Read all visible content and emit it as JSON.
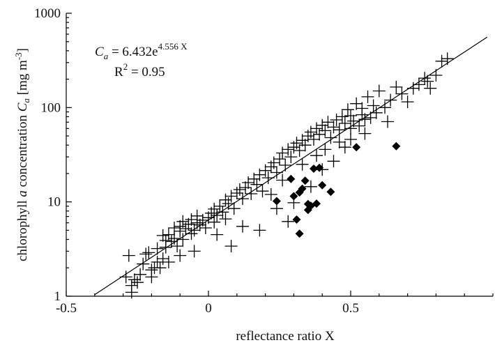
{
  "chart_data": {
    "type": "scatter",
    "xlabel": "reflectance ratio X",
    "ylabel_parts": [
      "chlorophyll ",
      "a",
      "  concentration ",
      "C",
      "a",
      " [mg m",
      "-3",
      "]"
    ],
    "xlim": [
      -0.5,
      1.0
    ],
    "ylim": [
      1,
      1000
    ],
    "yscale": "log",
    "x_ticks": [
      -0.5,
      0,
      0.5
    ],
    "x_tick_labels": [
      "-0.5",
      "0",
      "0.5"
    ],
    "y_ticks": [
      1,
      10,
      100,
      1000
    ],
    "y_tick_labels": [
      "1",
      "10",
      "100",
      "1000"
    ],
    "grid": false,
    "annotation": {
      "equation_parts": [
        "C",
        "a",
        " = 6.432e",
        "4.556 X"
      ],
      "r2_parts": [
        "R",
        "2",
        " = 0.95"
      ]
    },
    "fit_line": {
      "a": 6.432,
      "b": 4.556,
      "x_range": [
        -0.4,
        0.98
      ]
    },
    "series": [
      {
        "marker": "plus",
        "points": [
          [
            -0.28,
            2.7
          ],
          [
            -0.27,
            1.3
          ],
          [
            -0.27,
            1.1
          ],
          [
            -0.26,
            1.5
          ],
          [
            -0.29,
            1.6
          ],
          [
            -0.25,
            1.4
          ],
          [
            -0.24,
            1.7
          ],
          [
            -0.22,
            2.8
          ],
          [
            -0.23,
            2.2
          ],
          [
            -0.21,
            2.9
          ],
          [
            -0.2,
            1.6
          ],
          [
            -0.19,
            2.0
          ],
          [
            -0.18,
            2.3
          ],
          [
            -0.18,
            3.2
          ],
          [
            -0.17,
            2.0
          ],
          [
            -0.16,
            2.5
          ],
          [
            -0.16,
            4.4
          ],
          [
            -0.15,
            3.3
          ],
          [
            -0.15,
            3.9
          ],
          [
            -0.14,
            2.3
          ],
          [
            -0.14,
            4.5
          ],
          [
            -0.13,
            3.8
          ],
          [
            -0.12,
            4.1
          ],
          [
            -0.12,
            5.3
          ],
          [
            -0.11,
            3.4
          ],
          [
            -0.1,
            4.9
          ],
          [
            -0.1,
            5.5
          ],
          [
            -0.09,
            4.0
          ],
          [
            -0.09,
            6.2
          ],
          [
            -0.08,
            5.2
          ],
          [
            -0.07,
            5.8
          ],
          [
            -0.06,
            4.6
          ],
          [
            -0.06,
            6.5
          ],
          [
            -0.05,
            5.0
          ],
          [
            -0.04,
            6.0
          ],
          [
            -0.04,
            7.1
          ],
          [
            -0.03,
            5.7
          ],
          [
            -0.02,
            6.4
          ],
          [
            -0.01,
            5.3
          ],
          [
            0.0,
            6.8
          ],
          [
            0.01,
            7.6
          ],
          [
            0.02,
            6.1
          ],
          [
            0.02,
            8.4
          ],
          [
            0.03,
            7.2
          ],
          [
            0.04,
            9.0
          ],
          [
            0.05,
            7.8
          ],
          [
            0.06,
            6.6
          ],
          [
            0.06,
            10.5
          ],
          [
            0.07,
            9.6
          ],
          [
            0.08,
            11.5
          ],
          [
            0.09,
            8.5
          ],
          [
            0.1,
            12.4
          ],
          [
            0.11,
            13.5
          ],
          [
            0.12,
            10.8
          ],
          [
            0.13,
            14.2
          ],
          [
            0.14,
            16.0
          ],
          [
            0.15,
            12.2
          ],
          [
            0.16,
            17.5
          ],
          [
            0.17,
            15.3
          ],
          [
            0.18,
            19.4
          ],
          [
            0.19,
            13.0
          ],
          [
            0.2,
            21.5
          ],
          [
            0.21,
            18.0
          ],
          [
            0.22,
            23.5
          ],
          [
            0.23,
            26.0
          ],
          [
            0.24,
            20.5
          ],
          [
            0.25,
            28.5
          ],
          [
            0.26,
            33.0
          ],
          [
            0.27,
            24.5
          ],
          [
            0.28,
            36.0
          ],
          [
            0.29,
            30.0
          ],
          [
            0.3,
            38.0
          ],
          [
            0.31,
            42.0
          ],
          [
            0.32,
            35.0
          ],
          [
            0.33,
            45.0
          ],
          [
            0.34,
            40.0
          ],
          [
            0.35,
            50.0
          ],
          [
            0.36,
            55.0
          ],
          [
            0.37,
            46.0
          ],
          [
            0.38,
            60.0
          ],
          [
            0.39,
            52.0
          ],
          [
            0.4,
            65.0
          ],
          [
            0.41,
            57.0
          ],
          [
            0.42,
            70.0
          ],
          [
            0.43,
            48.0
          ],
          [
            0.44,
            62.0
          ],
          [
            0.45,
            74.0
          ],
          [
            0.46,
            58.0
          ],
          [
            0.47,
            80.0
          ],
          [
            0.48,
            68.0
          ],
          [
            0.49,
            95.0
          ],
          [
            0.5,
            60.0
          ],
          [
            0.51,
            72.0
          ],
          [
            0.52,
            110.0
          ],
          [
            0.53,
            64.0
          ],
          [
            0.54,
            84.0
          ],
          [
            0.55,
            75.0
          ],
          [
            0.56,
            130.0
          ],
          [
            0.57,
            78.0
          ],
          [
            0.58,
            105.0
          ],
          [
            0.6,
            150.0
          ],
          [
            0.62,
            100.0
          ],
          [
            0.64,
            120.0
          ],
          [
            0.66,
            165.0
          ],
          [
            0.68,
            140.0
          ],
          [
            0.7,
            115.0
          ],
          [
            0.72,
            160.0
          ],
          [
            0.74,
            175.0
          ],
          [
            0.76,
            205.0
          ],
          [
            0.77,
            190.0
          ],
          [
            0.78,
            160.0
          ],
          [
            0.8,
            220.0
          ],
          [
            0.82,
            310.0
          ],
          [
            0.84,
            330.0
          ],
          [
            -0.05,
            3.0
          ],
          [
            0.03,
            4.5
          ],
          [
            0.08,
            3.4
          ],
          [
            0.12,
            5.5
          ],
          [
            0.18,
            5.0
          ],
          [
            0.24,
            8.5
          ],
          [
            0.28,
            6.2
          ],
          [
            0.3,
            9.8
          ],
          [
            0.36,
            14.5
          ],
          [
            0.4,
            22.0
          ],
          [
            0.44,
            27.0
          ],
          [
            0.48,
            38.0
          ],
          [
            0.5,
            46.0
          ],
          [
            0.55,
            53.0
          ],
          [
            -0.1,
            2.7
          ],
          [
            -0.2,
            1.9
          ],
          [
            0.22,
            12.0
          ],
          [
            0.26,
            17.0
          ],
          [
            0.33,
            25.0
          ],
          [
            0.38,
            31.0
          ],
          [
            0.41,
            36.0
          ],
          [
            0.46,
            43.0
          ],
          [
            0.5,
            82.0
          ],
          [
            0.54,
            98.0
          ],
          [
            0.59,
            88.0
          ],
          [
            0.63,
            71.0
          ]
        ]
      },
      {
        "marker": "diamond",
        "points": [
          [
            0.24,
            10.2
          ],
          [
            0.29,
            17.5
          ],
          [
            0.3,
            11.5
          ],
          [
            0.31,
            6.5
          ],
          [
            0.32,
            4.6
          ],
          [
            0.32,
            12.6
          ],
          [
            0.33,
            13.8
          ],
          [
            0.34,
            16.8
          ],
          [
            0.35,
            8.2
          ],
          [
            0.35,
            9.5
          ],
          [
            0.36,
            9.1
          ],
          [
            0.37,
            22.5
          ],
          [
            0.38,
            9.6
          ],
          [
            0.39,
            23.0
          ],
          [
            0.4,
            15.0
          ],
          [
            0.43,
            12.8
          ],
          [
            0.52,
            38.0
          ],
          [
            0.66,
            39.0
          ]
        ]
      }
    ]
  }
}
